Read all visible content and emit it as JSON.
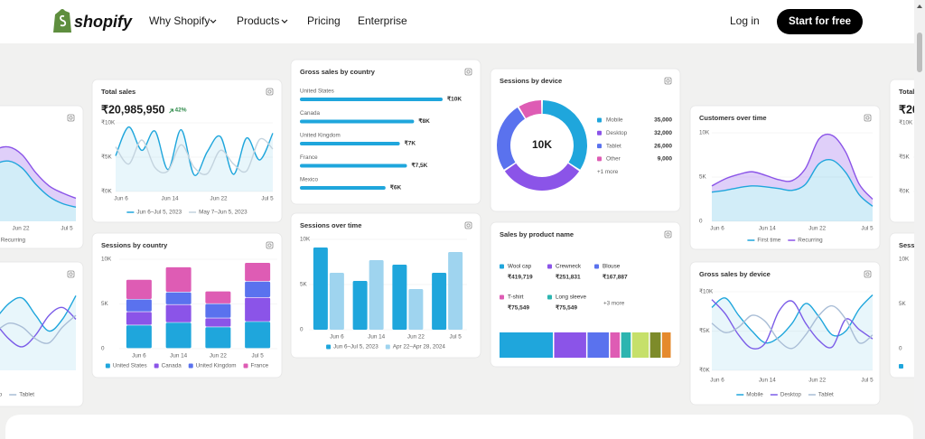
{
  "nav": {
    "brand": "shopify",
    "links": [
      "Why Shopify",
      "Products",
      "Pricing",
      "Enterprise"
    ],
    "login": "Log in",
    "cta": "Start for free"
  },
  "cards": [
    {
      "type": "line",
      "title": "Total sales",
      "value": "₹20,985,950",
      "change": "42%",
      "ylim": [
        0,
        10000
      ],
      "yticks": [
        {
          "value": 10000,
          "label": "₹10K"
        },
        {
          "value": 5000,
          "label": "₹5K"
        },
        {
          "value": 0,
          "label": "₹0K"
        }
      ],
      "xlabels": [
        "Jun 6",
        "Jun 14",
        "Jun 22",
        "Jul 5"
      ],
      "series": [
        {
          "name": "Jun 6–Jul 5, 2023",
          "color": "#1fa6dc",
          "values": [
            5200,
            9400,
            6000,
            8800,
            3200,
            9000,
            2400,
            5800,
            8000,
            2500,
            7800,
            4600,
            8500
          ]
        },
        {
          "name": "May 7–Jun 5, 2023",
          "color": "#c3d3de",
          "values": [
            6500,
            4000,
            7500,
            3500,
            3000,
            6800,
            3500,
            2600,
            6000,
            4000,
            3000,
            7600,
            6200
          ]
        }
      ]
    },
    {
      "type": "stacked-bar",
      "title": "Sessions by country",
      "ylim": [
        0,
        10000
      ],
      "yticks": [
        {
          "value": 10000,
          "label": "10K"
        },
        {
          "value": 5000,
          "label": "5K"
        },
        0
      ],
      "categories": [
        "Jun 6",
        "Jun 14",
        "Jun 22",
        "Jul 5"
      ],
      "series": [
        {
          "name": "United States",
          "color": "#1fa6dc",
          "values": [
            2600,
            2900,
            2400,
            3000
          ]
        },
        {
          "name": "Canada",
          "color": "#8b54e8",
          "values": [
            1500,
            2000,
            1000,
            2700
          ]
        },
        {
          "name": "United Kingdom",
          "color": "#5a72ee",
          "values": [
            1400,
            1400,
            1600,
            1800
          ]
        },
        {
          "name": "France",
          "color": "#de5cb4",
          "values": [
            2200,
            2800,
            1400,
            2100
          ]
        }
      ]
    },
    {
      "type": "hbar",
      "title": "Gross sales by country",
      "xlim": [
        0,
        10000
      ],
      "categories": [
        "United States",
        "Canada",
        "United Kingdom",
        "France",
        "Mexico"
      ],
      "values": [
        10000,
        8000,
        7000,
        7500,
        6000
      ],
      "value_labels": [
        "₹10K",
        "₹8K",
        "₹7K",
        "₹7,5K",
        "₹6K"
      ],
      "color": "#1fa6dc"
    },
    {
      "type": "grouped-bar",
      "title": "Sessions over time",
      "ylim": [
        0,
        10000
      ],
      "yticks": [
        {
          "value": 10000,
          "label": "10K"
        },
        {
          "value": 5000,
          "label": "5K"
        },
        0
      ],
      "categories": [
        "Jun 6",
        "Jun 14",
        "Jun 22",
        "Jul 5"
      ],
      "series": [
        {
          "name": "Jun 6–Jul 5, 2023",
          "color": "#1fa6dc",
          "values": [
            9100,
            5400,
            7200,
            6300
          ]
        },
        {
          "name": "Apr 22–Apr 28, 2024",
          "color": "#9fd4ef",
          "values": [
            6300,
            7700,
            4500,
            8600
          ]
        }
      ]
    },
    {
      "type": "donut",
      "title": "Sessions by device",
      "center": "10K",
      "categories": [
        "Mobile",
        "Desktop",
        "Tablet",
        "Other"
      ],
      "values": [
        35000,
        32000,
        26000,
        9000
      ],
      "value_labels": [
        "35,000",
        "32,000",
        "26,000",
        "9,000"
      ],
      "colors": [
        "#1fa6dc",
        "#8b54e8",
        "#5a72ee",
        "#de5cb4"
      ],
      "more": "+1 more"
    },
    {
      "type": "products",
      "title": "Sales by product name",
      "items": [
        {
          "name": "Wool cap",
          "value": 419719,
          "value_label": "₹419,719",
          "color": "#1fa6dc"
        },
        {
          "name": "Crewneck",
          "value": 251831,
          "value_label": "₹251,831",
          "color": "#8b54e8"
        },
        {
          "name": "Blouse",
          "value": 167887,
          "value_label": "₹167,887",
          "color": "#5a72ee"
        },
        {
          "name": "T-shirt",
          "value": 75549,
          "value_label": "₹75,549",
          "color": "#de5cb4"
        },
        {
          "name": "Long sleeve",
          "value": 75549,
          "value_label": "₹75,549",
          "color": "#2cb5b0"
        }
      ],
      "more": "+3 more"
    },
    {
      "type": "area",
      "title": "Customers over time",
      "ylim": [
        0,
        10000
      ],
      "yticks": [
        {
          "value": 10000,
          "label": "10K"
        },
        {
          "value": 5000,
          "label": "5K"
        },
        0
      ],
      "xlabels": [
        "Jun 6",
        "Jun 14",
        "Jun 22",
        "Jul 5"
      ],
      "series": [
        {
          "name": "First time",
          "color": "#1fa6dc",
          "values": [
            3300,
            3500,
            3800,
            4000,
            3900,
            3700,
            3500,
            4200,
            6500,
            6900,
            5500,
            3000,
            1700
          ]
        },
        {
          "name": "Recurring",
          "color": "#8b54e8",
          "values": [
            4000,
            4800,
            5300,
            5600,
            5200,
            4700,
            4600,
            6000,
            9300,
            9700,
            7800,
            4200,
            2500
          ]
        }
      ]
    },
    {
      "type": "line",
      "title": "Gross sales by device",
      "ylim": [
        0,
        10000
      ],
      "yticks": [
        {
          "value": 10000,
          "label": "₹10K"
        },
        {
          "value": 5000,
          "label": "₹5K"
        },
        {
          "value": 0,
          "label": "₹0K"
        }
      ],
      "xlabels": [
        "Jun 6",
        "Jun 14",
        "Jun 22",
        "Jul 5"
      ],
      "series": [
        {
          "name": "Mobile",
          "color": "#1fa6dc",
          "values": [
            8000,
            9200,
            7000,
            5000,
            3500,
            4200,
            6000,
            8500,
            6800,
            4500,
            5000,
            7800,
            9600
          ]
        },
        {
          "name": "Desktop",
          "color": "#7b5ce8",
          "values": [
            9000,
            7200,
            4500,
            2800,
            3500,
            7500,
            8800,
            6000,
            3800,
            3000,
            6500,
            5200,
            4000
          ]
        },
        {
          "name": "Tablet",
          "color": "#a9bdd6",
          "values": [
            6000,
            4800,
            5500,
            7000,
            6200,
            3800,
            2800,
            4500,
            7000,
            8200,
            6500,
            3500,
            4500
          ]
        }
      ]
    },
    {
      "type": "area",
      "ylim": [
        0,
        10000
      ],
      "xlabels": [
        "Jun 22",
        "Jul 5"
      ],
      "series": [
        {
          "color": "#1fa6dc",
          "values": [
            1500,
            1800,
            2200,
            2600,
            3500,
            4800,
            6400,
            6800,
            6000,
            4200,
            2800,
            2000,
            1600
          ]
        },
        {
          "name": "Recurring",
          "color": "#8b54e8",
          "values": [
            2000,
            2500,
            3000,
            3500,
            4500,
            6000,
            8000,
            8400,
            7500,
            5500,
            4000,
            3200,
            2600
          ]
        }
      ]
    },
    {
      "type": "line",
      "ylim": [
        0,
        10000
      ],
      "series": [
        {
          "color": "#1fa6dc",
          "values": [
            5000,
            6000,
            7000,
            6500,
            5000,
            4000,
            6500,
            8500,
            9200,
            7000,
            5000,
            6500,
            9500
          ]
        },
        {
          "name": "op",
          "color": "#7b5ce8",
          "values": [
            6000,
            5000,
            4000,
            5000,
            7000,
            8000,
            6000,
            4000,
            3000,
            4500,
            7000,
            8000,
            6500
          ]
        },
        {
          "name": "Tablet",
          "color": "#a9bdd6",
          "values": [
            4000,
            4500,
            5500,
            6000,
            5000,
            4500,
            5000,
            6000,
            5500,
            4000,
            3500,
            5500,
            7000
          ]
        }
      ]
    },
    {
      "type": "line",
      "title": "Total",
      "value": "₹20",
      "ylim": [
        0,
        10000
      ],
      "yticks": [
        {
          "value": 10000,
          "label": "₹10K"
        },
        {
          "value": 5000,
          "label": "₹5K"
        },
        {
          "value": 0,
          "label": "₹0K"
        }
      ]
    },
    {
      "type": "stacked-bar",
      "title": "Sessi",
      "ylim": [
        0,
        10000
      ],
      "yticks": [
        {
          "value": 10000,
          "label": "10K"
        },
        {
          "value": 5000,
          "label": "5K"
        },
        0
      ]
    }
  ]
}
